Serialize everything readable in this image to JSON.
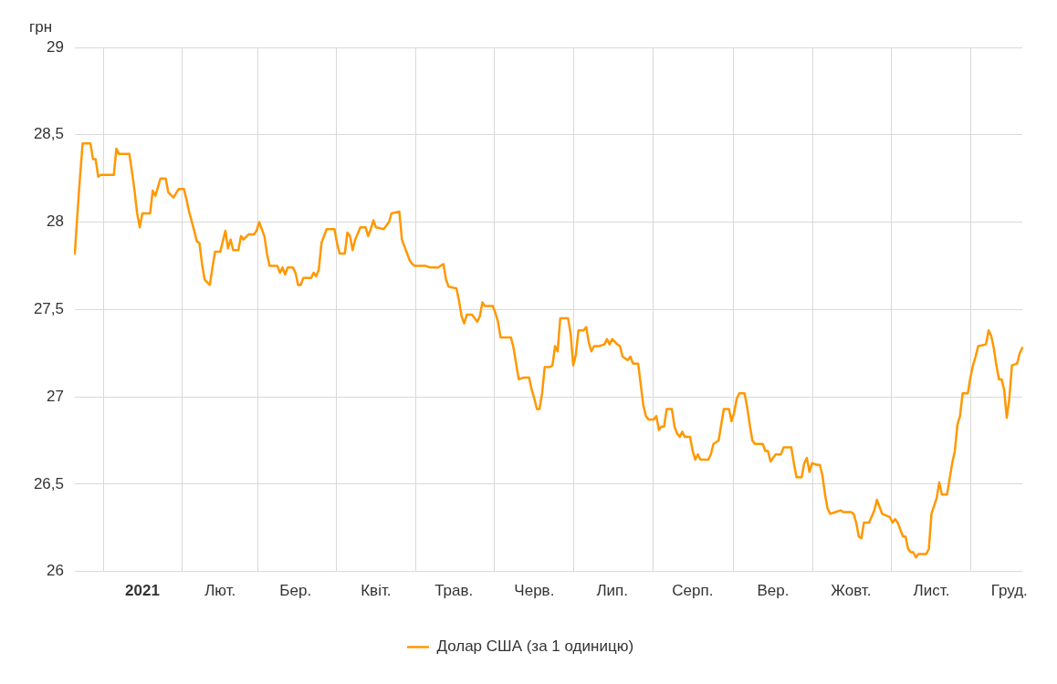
{
  "chart_data": {
    "type": "line",
    "ylabel": "грн",
    "categories": [
      null,
      null,
      null,
      null,
      null,
      null,
      null,
      null,
      null,
      null,
      null,
      null,
      null,
      null,
      null,
      null,
      null,
      null,
      null,
      null,
      null,
      null,
      null,
      null,
      null,
      null,
      "2021",
      null,
      null,
      null,
      null,
      null,
      null,
      null,
      null,
      null,
      null,
      null,
      null,
      null,
      null,
      null,
      null,
      null,
      null,
      null,
      null,
      null,
      null,
      null,
      null,
      null,
      null,
      null,
      null,
      null,
      "Лют.",
      null,
      null,
      null,
      null,
      null,
      null,
      null,
      null,
      null,
      null,
      null,
      null,
      null,
      null,
      null,
      null,
      null,
      null,
      null,
      null,
      null,
      null,
      null,
      null,
      null,
      null,
      null,
      null,
      "Бер.",
      null,
      null,
      null,
      null,
      null,
      null,
      null,
      null,
      null,
      null,
      null,
      null,
      null,
      null,
      null,
      null,
      null,
      null,
      null,
      null,
      null,
      null,
      null,
      null,
      null,
      null,
      null,
      null,
      null,
      null,
      "Квіт.",
      null,
      null,
      null,
      null,
      null,
      null,
      null,
      null,
      null,
      null,
      null,
      null,
      null,
      null,
      null,
      null,
      null,
      null,
      null,
      null,
      null,
      null,
      null,
      null,
      null,
      null,
      null,
      null,
      null,
      "Трав.",
      null,
      null,
      null,
      null,
      null,
      null,
      null,
      null,
      null,
      null,
      null,
      null,
      null,
      null,
      null,
      null,
      null,
      null,
      null,
      null,
      null,
      null,
      null,
      null,
      null,
      null,
      null,
      null,
      null,
      null,
      "Черв.",
      null,
      null,
      null,
      null,
      null,
      null,
      null,
      null,
      null,
      null,
      null,
      null,
      null,
      null,
      null,
      null,
      null,
      null,
      null,
      null,
      null,
      null,
      null,
      null,
      null,
      null,
      null,
      null,
      null,
      "Лип.",
      null,
      null,
      null,
      null,
      null,
      null,
      null,
      null,
      null,
      null,
      null,
      null,
      null,
      null,
      null,
      null,
      null,
      null,
      null,
      null,
      null,
      null,
      null,
      null,
      null,
      null,
      null,
      null,
      null,
      null,
      "Серп.",
      null,
      null,
      null,
      null,
      null,
      null,
      null,
      null,
      null,
      null,
      null,
      null,
      null,
      null,
      null,
      null,
      null,
      null,
      null,
      null,
      null,
      null,
      null,
      null,
      null,
      null,
      null,
      null,
      null,
      null,
      "Вер.",
      null,
      null,
      null,
      null,
      null,
      null,
      null,
      null,
      null,
      null,
      null,
      null,
      null,
      null,
      null,
      null,
      null,
      null,
      null,
      null,
      null,
      null,
      null,
      null,
      null,
      null,
      null,
      null,
      null,
      "Жовт.",
      null,
      null,
      null,
      null,
      null,
      null,
      null,
      null,
      null,
      null,
      null,
      null,
      null,
      null,
      null,
      null,
      null,
      null,
      null,
      null,
      null,
      null,
      null,
      null,
      null,
      null,
      null,
      null,
      null,
      null,
      "Лист.",
      null,
      null,
      null,
      null,
      null,
      null,
      null,
      null,
      null,
      null,
      null,
      null,
      null,
      null,
      null,
      null,
      null,
      null,
      null,
      null,
      null,
      null,
      null,
      null,
      null,
      null,
      null,
      null,
      null,
      "Груд.",
      null,
      null,
      null,
      null,
      null
    ],
    "series": [
      {
        "name": "Долар США (за 1 одиницю)",
        "color": "#ff9800",
        "values": [
          27.82,
          28.05,
          28.26,
          28.45,
          null,
          null,
          28.45,
          28.36,
          28.36,
          28.26,
          28.27,
          null,
          null,
          null,
          null,
          28.27,
          28.42,
          28.39,
          null,
          null,
          null,
          28.39,
          28.29,
          28.18,
          28.05,
          27.97,
          28.05,
          null,
          null,
          28.05,
          28.18,
          28.15,
          null,
          28.25,
          null,
          28.25,
          28.17,
          null,
          28.14,
          null,
          28.19,
          null,
          28.19,
          28.13,
          28.06,
          null,
          27.95,
          27.89,
          27.88,
          27.76,
          27.67,
          null,
          27.64,
          27.74,
          27.83,
          null,
          27.83,
          27.89,
          27.95,
          27.85,
          27.9,
          27.84,
          null,
          27.84,
          27.92,
          27.9,
          null,
          27.93,
          null,
          27.93,
          27.95,
          28.0,
          null,
          27.92,
          27.82,
          27.75,
          null,
          null,
          27.75,
          27.71,
          27.74,
          27.7,
          27.74,
          null,
          27.74,
          27.71,
          27.64,
          27.64,
          27.68,
          null,
          null,
          27.68,
          27.71,
          27.69,
          27.73,
          27.88,
          null,
          27.96,
          null,
          27.96,
          27.96,
          27.88,
          27.82,
          null,
          27.82,
          27.94,
          27.92,
          27.84,
          27.9,
          null,
          27.97,
          null,
          27.97,
          27.92,
          27.96,
          28.01,
          27.97,
          null,
          null,
          27.96,
          null,
          28.0,
          28.05,
          null,
          null,
          28.06,
          27.9,
          null,
          27.82,
          27.78,
          27.76,
          27.75,
          null,
          null,
          null,
          27.75,
          null,
          27.74,
          null,
          null,
          27.74,
          null,
          27.76,
          27.67,
          27.63,
          null,
          null,
          27.62,
          27.55,
          27.46,
          27.42,
          27.47,
          null,
          27.47,
          null,
          27.43,
          27.46,
          27.54,
          27.52,
          null,
          null,
          27.52,
          27.48,
          27.43,
          27.34,
          null,
          null,
          null,
          27.34,
          27.28,
          27.19,
          27.1,
          null,
          27.11,
          null,
          27.11,
          27.04,
          26.99,
          26.93,
          26.93,
          27.02,
          27.17,
          null,
          27.17,
          27.18,
          27.29,
          27.26,
          27.45,
          null,
          null,
          27.45,
          27.36,
          27.18,
          27.24,
          27.38,
          null,
          27.38,
          27.4,
          27.31,
          27.26,
          27.29,
          null,
          27.29,
          null,
          27.3,
          27.33,
          27.3,
          27.33,
          null,
          27.3,
          27.29,
          27.23,
          null,
          27.21,
          27.23,
          27.19,
          null,
          27.19,
          27.07,
          26.95,
          26.89,
          26.87,
          null,
          26.87,
          26.89,
          26.81,
          26.83,
          26.83,
          26.93,
          null,
          26.93,
          26.83,
          26.79,
          26.77,
          26.8,
          26.77,
          null,
          26.77,
          26.69,
          26.64,
          26.67,
          26.64,
          null,
          null,
          26.64,
          26.67,
          26.73,
          null,
          26.75,
          26.84,
          26.93,
          null,
          26.93,
          26.86,
          26.91,
          26.99,
          27.02,
          null,
          27.02,
          26.94,
          26.84,
          26.75,
          26.73,
          null,
          null,
          26.73,
          26.69,
          26.69,
          26.63,
          26.65,
          26.67,
          null,
          26.67,
          26.71,
          null,
          null,
          26.71,
          26.62,
          26.54,
          null,
          26.54,
          26.62,
          26.65,
          26.57,
          26.62,
          null,
          26.61,
          26.61,
          26.55,
          26.44,
          26.36,
          26.33,
          null,
          26.34,
          null,
          26.35,
          26.34,
          null,
          null,
          26.34,
          26.33,
          26.28,
          26.2,
          26.19,
          26.28,
          null,
          26.28,
          null,
          26.35,
          26.41,
          26.37,
          26.33,
          null,
          null,
          26.31,
          26.28,
          26.3,
          26.28,
          26.24,
          26.2,
          26.2,
          26.13,
          26.11,
          26.11,
          26.08,
          26.1,
          null,
          null,
          26.1,
          26.13,
          26.33,
          null,
          26.42,
          26.51,
          26.44,
          null,
          26.44,
          26.53,
          26.62,
          26.69,
          26.84,
          26.89,
          27.02,
          null,
          27.02,
          27.11,
          27.18,
          27.23,
          27.29,
          null,
          null,
          27.3,
          27.38,
          27.35,
          27.28,
          27.18,
          27.1,
          27.1,
          27.04,
          26.88,
          26.99,
          27.18,
          null,
          27.19,
          27.25,
          27.28
        ]
      }
    ],
    "ylim": [
      26,
      29
    ],
    "yticks": [
      26,
      {
        "value": 26.5,
        "label": "26,5"
      },
      27,
      {
        "value": 27.5,
        "label": "27,5"
      },
      28,
      {
        "value": 28.5,
        "label": "28,5"
      },
      29
    ],
    "grid": true,
    "legend": "bottom",
    "marker": "none",
    "line_style": "solid"
  }
}
